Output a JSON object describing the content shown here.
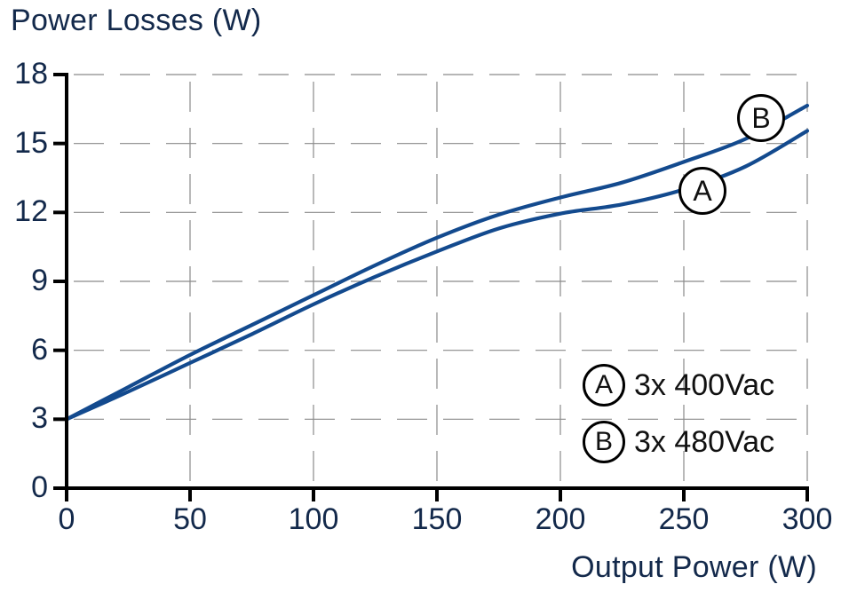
{
  "chart_data": {
    "type": "line",
    "title": "",
    "ylabel": "Power Losses (W)",
    "xlabel": "Output Power (W)",
    "xlim": [
      0,
      300
    ],
    "ylim": [
      0,
      18
    ],
    "x_ticks": [
      0,
      50,
      100,
      150,
      200,
      250,
      300
    ],
    "y_ticks": [
      0,
      3,
      6,
      9,
      12,
      15,
      18
    ],
    "grid": true,
    "grid_style": "dashed",
    "legend_position": "lower right",
    "x": [
      0,
      25,
      50,
      75,
      100,
      125,
      150,
      175,
      200,
      225,
      250,
      275,
      300
    ],
    "series": [
      {
        "name": "3x 400Vac",
        "marker_label": "A",
        "color": "#134a8e",
        "values": [
          3.0,
          4.2,
          5.45,
          6.7,
          8.0,
          9.2,
          10.3,
          11.3,
          11.95,
          12.35,
          13.0,
          14.0,
          15.55
        ]
      },
      {
        "name": "3x 480Vac",
        "marker_label": "B",
        "color": "#134a8e",
        "values": [
          3.0,
          4.4,
          5.8,
          7.1,
          8.4,
          9.7,
          10.9,
          11.9,
          12.65,
          13.3,
          14.2,
          15.2,
          16.65
        ]
      }
    ],
    "annotations": [
      {
        "label": "A",
        "x": 258,
        "y": 12.9,
        "series": "3x 400Vac"
      },
      {
        "label": "B",
        "x": 281,
        "y": 16.1,
        "series": "3x 480Vac"
      }
    ]
  },
  "labels": {
    "y_axis_title": "Power Losses (W)",
    "x_axis_title": "Output Power (W)",
    "y_ticks": [
      "0",
      "3",
      "6",
      "9",
      "12",
      "15",
      "18"
    ],
    "x_ticks": [
      "0",
      "50",
      "100",
      "150",
      "200",
      "250",
      "300"
    ]
  },
  "legend": {
    "items": [
      {
        "badge": "A",
        "label": "3x 400Vac"
      },
      {
        "badge": "B",
        "label": "3x 480Vac"
      }
    ]
  },
  "curve_markers": {
    "a": "A",
    "b": "B"
  },
  "colors": {
    "line": "#134a8e",
    "text": "#13294b",
    "axis": "#000000",
    "grid": "#8a8a8a"
  }
}
